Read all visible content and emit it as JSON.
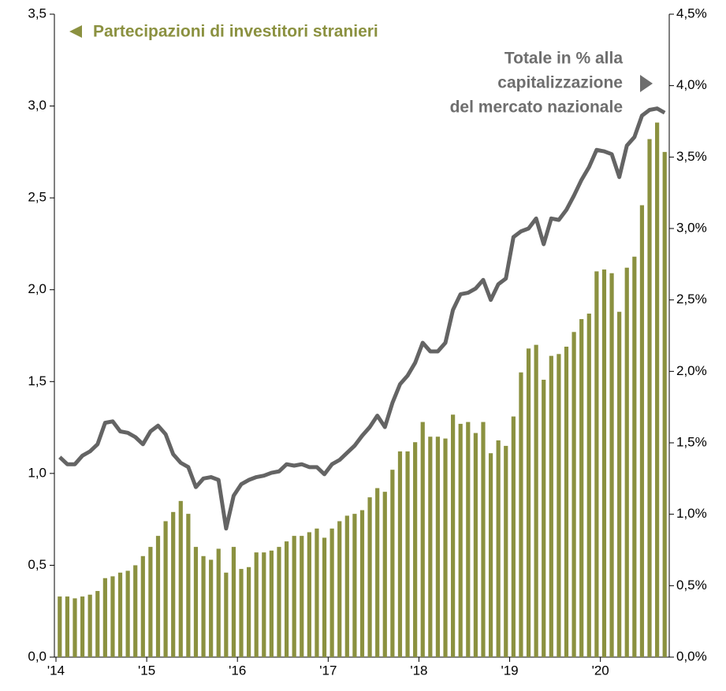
{
  "chart_data": {
    "type": "bar_line",
    "annotations": [
      {
        "lines": [
          "Partecipazioni di investitori stranieri"
        ],
        "color": "#8b9140"
      },
      {
        "lines": [
          "Totale in % alla",
          "capitalizzazione",
          "del mercato nazionale"
        ],
        "color": "#6e6e6e"
      }
    ],
    "categories": [
      "'14",
      null,
      null,
      null,
      null,
      null,
      null,
      null,
      null,
      null,
      null,
      null,
      "'15",
      null,
      null,
      null,
      null,
      null,
      null,
      null,
      null,
      null,
      null,
      null,
      "'16",
      null,
      null,
      null,
      null,
      null,
      null,
      null,
      null,
      null,
      null,
      null,
      "'17",
      null,
      null,
      null,
      null,
      null,
      null,
      null,
      null,
      null,
      null,
      null,
      "'18",
      null,
      null,
      null,
      null,
      null,
      null,
      null,
      null,
      null,
      null,
      null,
      "'19",
      null,
      null,
      null,
      null,
      null,
      null,
      null,
      null,
      null,
      null,
      null,
      "'20",
      null,
      null,
      null,
      null,
      null,
      null,
      null,
      null
    ],
    "series": [
      {
        "name": "Partecipazioni di investitori stranieri",
        "color": "#8b9140",
        "axis": "y",
        "values": [
          0.33,
          0.33,
          0.32,
          0.33,
          0.34,
          0.36,
          0.43,
          0.44,
          0.46,
          0.47,
          0.5,
          0.55,
          0.6,
          0.66,
          0.74,
          0.79,
          0.85,
          0.78,
          0.6,
          0.55,
          0.53,
          0.59,
          0.46,
          0.6,
          0.48,
          0.49,
          0.57,
          0.57,
          0.58,
          0.6,
          0.63,
          0.66,
          0.66,
          0.68,
          0.7,
          0.65,
          0.7,
          0.74,
          0.77,
          0.78,
          0.8,
          0.87,
          0.92,
          0.9,
          1.02,
          1.12,
          1.12,
          1.17,
          1.28,
          1.2,
          1.2,
          1.19,
          1.32,
          1.27,
          1.28,
          1.22,
          1.28,
          1.11,
          1.18,
          1.15,
          1.31,
          1.55,
          1.68,
          1.7,
          1.51,
          1.64,
          1.65,
          1.69,
          1.77,
          1.84,
          1.87,
          2.1,
          2.11,
          2.09,
          1.88,
          2.12,
          2.18,
          2.46,
          2.82,
          2.91,
          2.75
        ]
      },
      {
        "name": "Totale in % alla capitalizzazione del mercato nazionale",
        "color": "#646464",
        "axis": "y2",
        "values": [
          1.4,
          1.35,
          1.35,
          1.41,
          1.44,
          1.49,
          1.64,
          1.65,
          1.58,
          1.57,
          1.54,
          1.49,
          1.58,
          1.62,
          1.56,
          1.42,
          1.36,
          1.33,
          1.19,
          1.25,
          1.26,
          1.24,
          0.9,
          1.13,
          1.21,
          1.24,
          1.26,
          1.27,
          1.29,
          1.3,
          1.35,
          1.34,
          1.35,
          1.33,
          1.33,
          1.28,
          1.35,
          1.38,
          1.43,
          1.48,
          1.55,
          1.61,
          1.69,
          1.61,
          1.78,
          1.91,
          1.97,
          2.06,
          2.2,
          2.14,
          2.14,
          2.2,
          2.43,
          2.54,
          2.55,
          2.58,
          2.64,
          2.5,
          2.61,
          2.65,
          2.94,
          2.98,
          3.0,
          3.07,
          2.89,
          3.07,
          3.06,
          3.13,
          3.23,
          3.34,
          3.43,
          3.55,
          3.54,
          3.52,
          3.36,
          3.58,
          3.64,
          3.79,
          3.83,
          3.84,
          3.81
        ]
      }
    ],
    "ylim": [
      0,
      3.5
    ],
    "yticks": [
      {
        "value": 0,
        "label": "0,0"
      },
      {
        "value": 0.5,
        "label": "0,5"
      },
      {
        "value": 1,
        "label": "1,0"
      },
      {
        "value": 1.5,
        "label": "1,5"
      },
      {
        "value": 2,
        "label": "2,0"
      },
      {
        "value": 2.5,
        "label": "2,5"
      },
      {
        "value": 3,
        "label": "3,0"
      },
      {
        "value": 3.5,
        "label": "3,5"
      }
    ],
    "y2lim": [
      0,
      4.5
    ],
    "y2ticks": [
      {
        "value": 0,
        "label": "0,0%"
      },
      {
        "value": 0.5,
        "label": "0,5%"
      },
      {
        "value": 1,
        "label": "1,0%"
      },
      {
        "value": 1.5,
        "label": "1,5%"
      },
      {
        "value": 2,
        "label": "2,0%"
      },
      {
        "value": 2.5,
        "label": "2,5%"
      },
      {
        "value": 3,
        "label": "3,0%"
      },
      {
        "value": 3.5,
        "label": "3,5%"
      },
      {
        "value": 4,
        "label": "4,0%"
      },
      {
        "value": 4.5,
        "label": "4,5%"
      }
    ]
  }
}
